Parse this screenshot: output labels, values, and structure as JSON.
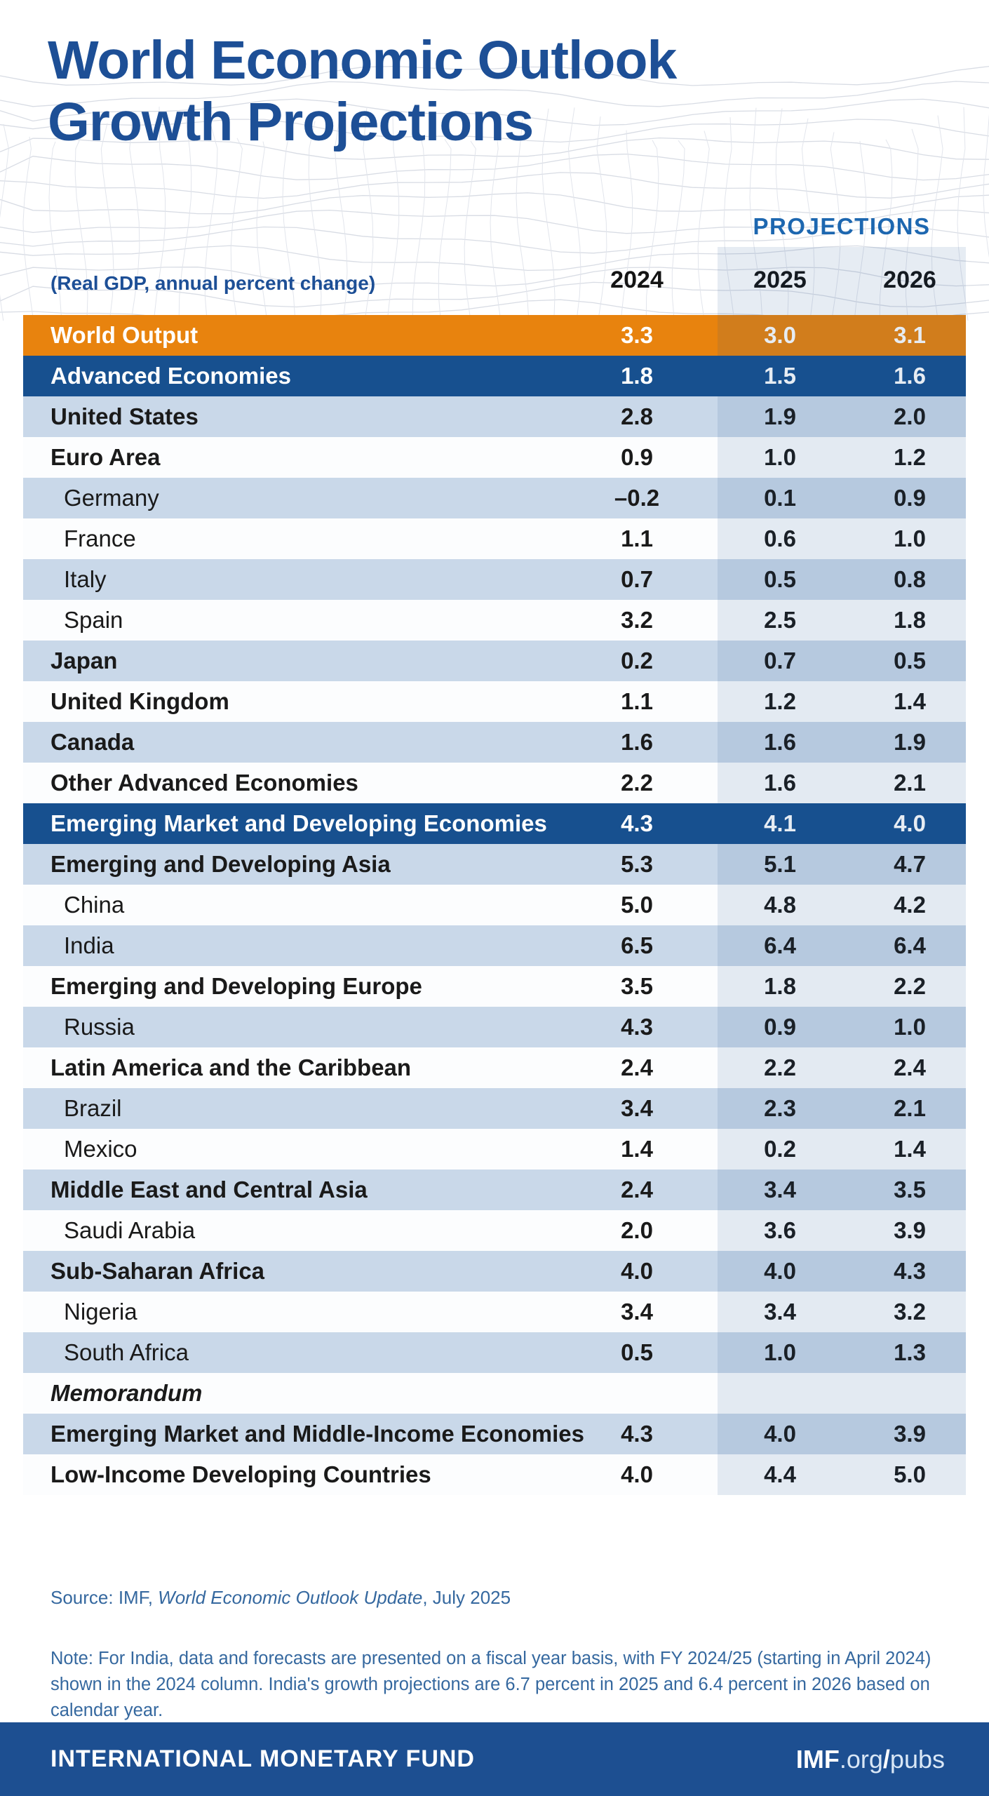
{
  "header": {
    "title_line1": "World Economic Outlook",
    "title_line2": "Growth Projections",
    "projections_label": "PROJECTIONS",
    "subtitle": "(Real GDP, annual percent change)",
    "columns": [
      "2024",
      "2025",
      "2026"
    ]
  },
  "table": {
    "rows": [
      {
        "label": "World Output",
        "values": [
          "3.3",
          "3.0",
          "3.1"
        ],
        "style": "world",
        "indent": false
      },
      {
        "label": "Advanced Economies",
        "values": [
          "1.8",
          "1.5",
          "1.6"
        ],
        "style": "group",
        "indent": false
      },
      {
        "label": "United States",
        "values": [
          "2.8",
          "1.9",
          "2.0"
        ],
        "style": "light",
        "indent": false
      },
      {
        "label": "Euro Area",
        "values": [
          "0.9",
          "1.0",
          "1.2"
        ],
        "style": "white",
        "indent": false
      },
      {
        "label": "Germany",
        "values": [
          "–0.2",
          "0.1",
          "0.9"
        ],
        "style": "light",
        "indent": true
      },
      {
        "label": "France",
        "values": [
          "1.1",
          "0.6",
          "1.0"
        ],
        "style": "white",
        "indent": true
      },
      {
        "label": "Italy",
        "values": [
          "0.7",
          "0.5",
          "0.8"
        ],
        "style": "light",
        "indent": true
      },
      {
        "label": "Spain",
        "values": [
          "3.2",
          "2.5",
          "1.8"
        ],
        "style": "white",
        "indent": true
      },
      {
        "label": "Japan",
        "values": [
          "0.2",
          "0.7",
          "0.5"
        ],
        "style": "light",
        "indent": false
      },
      {
        "label": "United Kingdom",
        "values": [
          "1.1",
          "1.2",
          "1.4"
        ],
        "style": "white",
        "indent": false
      },
      {
        "label": "Canada",
        "values": [
          "1.6",
          "1.6",
          "1.9"
        ],
        "style": "light",
        "indent": false
      },
      {
        "label": "Other Advanced Economies",
        "values": [
          "2.2",
          "1.6",
          "2.1"
        ],
        "style": "white",
        "indent": false
      },
      {
        "label": "Emerging Market and Developing Economies",
        "values": [
          "4.3",
          "4.1",
          "4.0"
        ],
        "style": "group",
        "indent": false
      },
      {
        "label": "Emerging and Developing Asia",
        "values": [
          "5.3",
          "5.1",
          "4.7"
        ],
        "style": "light",
        "indent": false
      },
      {
        "label": "China",
        "values": [
          "5.0",
          "4.8",
          "4.2"
        ],
        "style": "white",
        "indent": true
      },
      {
        "label": "India",
        "values": [
          "6.5",
          "6.4",
          "6.4"
        ],
        "style": "light",
        "indent": true
      },
      {
        "label": "Emerging and Developing Europe",
        "values": [
          "3.5",
          "1.8",
          "2.2"
        ],
        "style": "white",
        "indent": false
      },
      {
        "label": "Russia",
        "values": [
          "4.3",
          "0.9",
          "1.0"
        ],
        "style": "light",
        "indent": true
      },
      {
        "label": "Latin America and the Caribbean",
        "values": [
          "2.4",
          "2.2",
          "2.4"
        ],
        "style": "white",
        "indent": false
      },
      {
        "label": "Brazil",
        "values": [
          "3.4",
          "2.3",
          "2.1"
        ],
        "style": "light",
        "indent": true
      },
      {
        "label": "Mexico",
        "values": [
          "1.4",
          "0.2",
          "1.4"
        ],
        "style": "white",
        "indent": true
      },
      {
        "label": "Middle East and Central Asia",
        "values": [
          "2.4",
          "3.4",
          "3.5"
        ],
        "style": "light",
        "indent": false
      },
      {
        "label": "Saudi Arabia",
        "values": [
          "2.0",
          "3.6",
          "3.9"
        ],
        "style": "white",
        "indent": true
      },
      {
        "label": "Sub-Saharan Africa",
        "values": [
          "4.0",
          "4.0",
          "4.3"
        ],
        "style": "light",
        "indent": false
      },
      {
        "label": "Nigeria",
        "values": [
          "3.4",
          "3.4",
          "3.2"
        ],
        "style": "white",
        "indent": true
      },
      {
        "label": "South Africa",
        "values": [
          "0.5",
          "1.0",
          "1.3"
        ],
        "style": "light",
        "indent": true
      },
      {
        "label": "Memorandum",
        "values": [
          "",
          "",
          ""
        ],
        "style": "white",
        "indent": false,
        "italic": true
      },
      {
        "label": "Emerging Market and Middle-Income Economies",
        "values": [
          "4.3",
          "4.0",
          "3.9"
        ],
        "style": "light",
        "indent": false
      },
      {
        "label": "Low-Income Developing Countries",
        "values": [
          "4.0",
          "4.4",
          "5.0"
        ],
        "style": "white",
        "indent": false
      }
    ]
  },
  "chart_data": {
    "type": "table",
    "title": "World Economic Outlook Growth Projections",
    "subtitle": "(Real GDP, annual percent change)",
    "categories": [
      "2024",
      "2025",
      "2026"
    ],
    "projection_columns": [
      "2025",
      "2026"
    ],
    "series": [
      {
        "name": "World Output",
        "values": [
          3.3,
          3.0,
          3.1
        ]
      },
      {
        "name": "Advanced Economies",
        "values": [
          1.8,
          1.5,
          1.6
        ]
      },
      {
        "name": "United States",
        "values": [
          2.8,
          1.9,
          2.0
        ]
      },
      {
        "name": "Euro Area",
        "values": [
          0.9,
          1.0,
          1.2
        ]
      },
      {
        "name": "Germany",
        "values": [
          -0.2,
          0.1,
          0.9
        ]
      },
      {
        "name": "France",
        "values": [
          1.1,
          0.6,
          1.0
        ]
      },
      {
        "name": "Italy",
        "values": [
          0.7,
          0.5,
          0.8
        ]
      },
      {
        "name": "Spain",
        "values": [
          3.2,
          2.5,
          1.8
        ]
      },
      {
        "name": "Japan",
        "values": [
          0.2,
          0.7,
          0.5
        ]
      },
      {
        "name": "United Kingdom",
        "values": [
          1.1,
          1.2,
          1.4
        ]
      },
      {
        "name": "Canada",
        "values": [
          1.6,
          1.6,
          1.9
        ]
      },
      {
        "name": "Other Advanced Economies",
        "values": [
          2.2,
          1.6,
          2.1
        ]
      },
      {
        "name": "Emerging Market and Developing Economies",
        "values": [
          4.3,
          4.1,
          4.0
        ]
      },
      {
        "name": "Emerging and Developing Asia",
        "values": [
          5.3,
          5.1,
          4.7
        ]
      },
      {
        "name": "China",
        "values": [
          5.0,
          4.8,
          4.2
        ]
      },
      {
        "name": "India",
        "values": [
          6.5,
          6.4,
          6.4
        ]
      },
      {
        "name": "Emerging and Developing Europe",
        "values": [
          3.5,
          1.8,
          2.2
        ]
      },
      {
        "name": "Russia",
        "values": [
          4.3,
          0.9,
          1.0
        ]
      },
      {
        "name": "Latin America and the Caribbean",
        "values": [
          2.4,
          2.2,
          2.4
        ]
      },
      {
        "name": "Brazil",
        "values": [
          3.4,
          2.3,
          2.1
        ]
      },
      {
        "name": "Mexico",
        "values": [
          1.4,
          0.2,
          1.4
        ]
      },
      {
        "name": "Middle East and Central Asia",
        "values": [
          2.4,
          3.4,
          3.5
        ]
      },
      {
        "name": "Saudi Arabia",
        "values": [
          2.0,
          3.6,
          3.9
        ]
      },
      {
        "name": "Sub-Saharan Africa",
        "values": [
          4.0,
          4.0,
          4.3
        ]
      },
      {
        "name": "Nigeria",
        "values": [
          3.4,
          3.4,
          3.2
        ]
      },
      {
        "name": "South Africa",
        "values": [
          0.5,
          1.0,
          1.3
        ]
      },
      {
        "name": "Emerging Market and Middle-Income Economies",
        "values": [
          4.3,
          4.0,
          3.9
        ]
      },
      {
        "name": "Low-Income Developing Countries",
        "values": [
          4.0,
          4.4,
          5.0
        ]
      }
    ]
  },
  "footer": {
    "source_prefix": "Source: IMF, ",
    "source_italic": "World Economic Outlook Update",
    "source_suffix": ", July 2025",
    "note": "Note: For India, data and forecasts are presented on a fiscal year basis, with FY 2024/25 (starting in April 2024) shown in the 2024 column. India's growth projections are 6.7 percent in 2025 and 6.4 percent in 2026 based on calendar year.",
    "bar_left": "INTERNATIONAL MONETARY FUND",
    "url_bold": "IMF",
    "url_org": ".org",
    "url_slash": "/",
    "url_pubs": "pubs"
  },
  "colors": {
    "title_blue": "#1D4F96",
    "projections_blue": "#1D67B0",
    "world_orange": "#E8830E",
    "group_blue": "#17508F",
    "light_row_blue": "#C9D8E9",
    "band_tint": "rgba(23,80,150,0.11)",
    "note_blue": "#35689F",
    "bar_blue": "#1D4F91"
  }
}
